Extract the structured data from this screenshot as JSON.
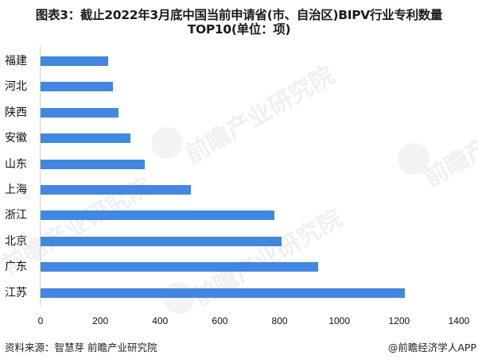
{
  "title": {
    "line1": "图表3：截止2022年3月底中国当前申请省(市、自治区)BIPV行业专利数量",
    "line2": "TOP10(单位：项)"
  },
  "chart_data": {
    "type": "bar",
    "orientation": "horizontal",
    "title": "图表3：截止2022年3月底中国当前申请省(市、自治区)BIPV行业专利数量TOP10(单位：项)",
    "categories": [
      "福建",
      "河北",
      "陕西",
      "安徽",
      "山东",
      "上海",
      "浙江",
      "北京",
      "广东",
      "江苏"
    ],
    "values": [
      226,
      242,
      261,
      301,
      349,
      503,
      783,
      807,
      929,
      1218
    ],
    "xlabel": "",
    "ylabel": "",
    "xlim": [
      0,
      1400
    ],
    "xticks": [
      "0",
      "200",
      "400",
      "600",
      "800",
      "1000",
      "1200",
      "1400"
    ],
    "grid": false,
    "legend": null,
    "bar_color": "#4287e0"
  },
  "footer": {
    "source": "资料来源：智慧芽 前瞻产业研究院",
    "credit": "@前瞻经济学人APP"
  },
  "watermark": {
    "text": "前瞻产业研究院"
  }
}
